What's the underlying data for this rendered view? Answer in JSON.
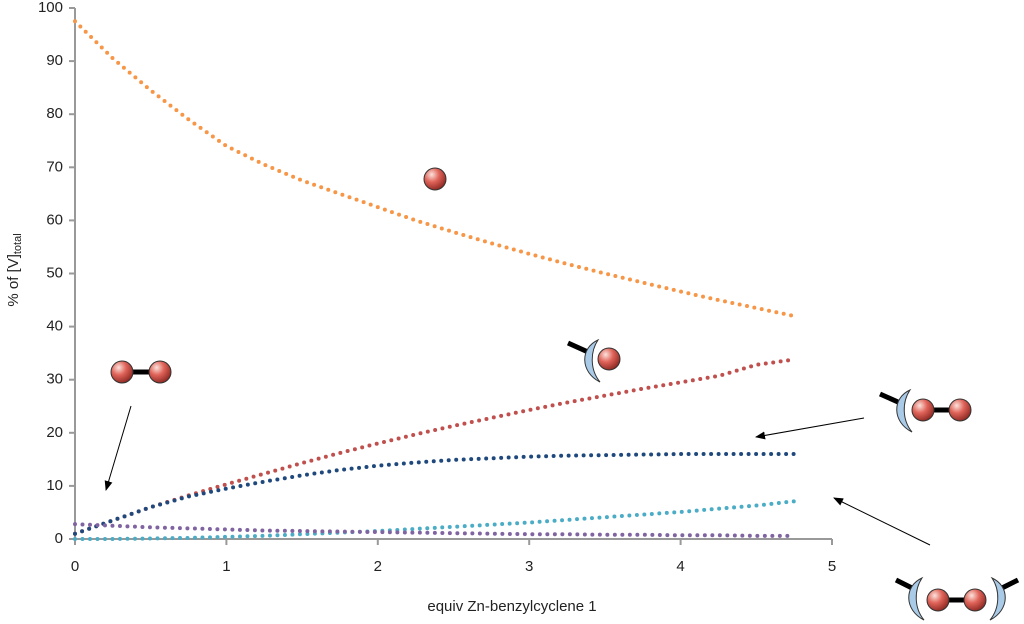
{
  "chart_data": {
    "type": "line",
    "x_label": "equiv Zn-benzylcyclene 1",
    "y_label": "% of [V]",
    "y_label_subscript": "total",
    "x": [
      0,
      0.25,
      0.5,
      0.75,
      1,
      1.25,
      1.5,
      1.75,
      2,
      2.25,
      2.5,
      2.75,
      3,
      3.25,
      3.5,
      3.75,
      4,
      4.25,
      4.5,
      4.75
    ],
    "series": [
      {
        "color": "#f79646",
        "values": [
          97.5,
          90.5,
          84.5,
          79,
          74,
          70.5,
          67.5,
          65,
          62.5,
          60,
          57.8,
          55.7,
          53.7,
          51.8,
          50,
          48.3,
          46.6,
          45,
          43.5,
          42
        ]
      },
      {
        "color": "#c0504d",
        "values": [
          1,
          3.5,
          6,
          8.2,
          10.3,
          12.3,
          14.3,
          16.2,
          18,
          19.7,
          21.3,
          22.8,
          24.3,
          25.7,
          27,
          28.3,
          29.5,
          30.7,
          32.8,
          33.8
        ]
      },
      {
        "color": "#1f497d",
        "values": [
          1,
          3.5,
          6,
          8,
          9.5,
          10.8,
          12,
          13,
          13.8,
          14.4,
          14.9,
          15.2,
          15.5,
          15.7,
          15.8,
          15.9,
          16,
          16,
          16,
          16
        ]
      },
      {
        "color": "#4bacc6",
        "values": [
          0,
          0,
          0.1,
          0.2,
          0.4,
          0.6,
          0.9,
          1.2,
          1.5,
          1.9,
          2.3,
          2.7,
          3.1,
          3.6,
          4.1,
          4.6,
          5.1,
          5.7,
          6.3,
          7.1
        ]
      },
      {
        "color": "#8064a2",
        "values": [
          2.8,
          2.5,
          2.2,
          2,
          1.8,
          1.6,
          1.5,
          1.4,
          1.3,
          1.2,
          1.1,
          1,
          0.9,
          0.9,
          0.8,
          0.8,
          0.7,
          0.7,
          0.6,
          0.6
        ]
      }
    ],
    "xlim": [
      0,
      5
    ],
    "xticks": [
      0,
      1,
      2,
      3,
      4,
      5
    ],
    "ylim": [
      0,
      100
    ],
    "yticks": [
      0,
      10,
      20,
      30,
      40,
      50,
      60,
      70,
      80,
      90,
      100
    ],
    "grid": false
  }
}
